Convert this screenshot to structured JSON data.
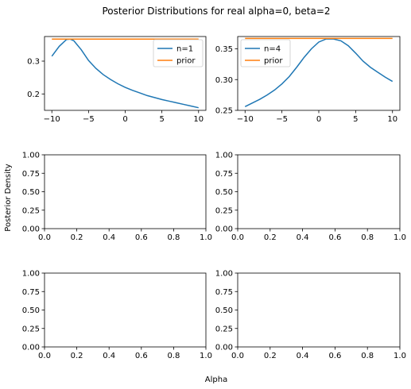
{
  "figure": {
    "title": "Posterior Distributions for real alpha=0, beta=2",
    "xlabel": "Alpha",
    "ylabel": "Posterior Density"
  },
  "colors": {
    "n_series": "#1f77b4",
    "prior": "#ff7f0e"
  },
  "chart_data": [
    {
      "type": "line",
      "xlim": [
        -11,
        11
      ],
      "ylim": [
        0.15,
        0.375
      ],
      "xticks": [
        -10,
        -5,
        0,
        5,
        10
      ],
      "yticks": [
        0.2,
        0.3
      ],
      "xtick_labels": [
        "−10",
        "−5",
        "0",
        "5",
        "10"
      ],
      "ytick_labels": [
        "0.2",
        "0.3"
      ],
      "legend": "top-right",
      "series": [
        {
          "name": "n=1",
          "color": "#1f77b4",
          "x": [
            -10,
            -9,
            -8,
            -7.5,
            -7,
            -6,
            -5,
            -4,
            -3,
            -2,
            -1,
            0,
            1,
            2,
            3,
            4,
            5,
            6,
            7,
            8,
            9,
            10
          ],
          "y": [
            0.315,
            0.345,
            0.366,
            0.367,
            0.362,
            0.335,
            0.302,
            0.278,
            0.259,
            0.244,
            0.231,
            0.22,
            0.211,
            0.203,
            0.195,
            0.189,
            0.183,
            0.178,
            0.173,
            0.168,
            0.163,
            0.158
          ]
        },
        {
          "name": "prior",
          "color": "#ff7f0e",
          "x": [
            -10,
            10
          ],
          "y": [
            0.367,
            0.367
          ]
        }
      ]
    },
    {
      "type": "line",
      "xlim": [
        -11,
        11
      ],
      "ylim": [
        0.25,
        0.37
      ],
      "xticks": [
        -10,
        -5,
        0,
        5,
        10
      ],
      "yticks": [
        0.25,
        0.3,
        0.35
      ],
      "xtick_labels": [
        "−10",
        "−5",
        "0",
        "5",
        "10"
      ],
      "ytick_labels": [
        "0.25",
        "0.30",
        "0.35"
      ],
      "legend": "top-left",
      "series": [
        {
          "name": "n=4",
          "color": "#1f77b4",
          "x": [
            -10,
            -9,
            -8,
            -7,
            -6,
            -5,
            -4,
            -3,
            -2,
            -1,
            0,
            1,
            2,
            3,
            4,
            5,
            6,
            7,
            8,
            9,
            10
          ],
          "y": [
            0.256,
            0.262,
            0.268,
            0.275,
            0.283,
            0.293,
            0.305,
            0.32,
            0.336,
            0.35,
            0.361,
            0.366,
            0.366,
            0.363,
            0.355,
            0.343,
            0.33,
            0.32,
            0.312,
            0.304,
            0.297
          ]
        },
        {
          "name": "prior",
          "color": "#ff7f0e",
          "x": [
            -10,
            10
          ],
          "y": [
            0.367,
            0.367
          ]
        }
      ]
    },
    {
      "type": "line",
      "xlim": [
        0,
        1
      ],
      "ylim": [
        0,
        1
      ],
      "xticks": [
        0,
        0.2,
        0.4,
        0.6,
        0.8,
        1.0
      ],
      "yticks": [
        0,
        0.25,
        0.5,
        0.75,
        1.0
      ],
      "xtick_labels": [
        "0.0",
        "0.2",
        "0.4",
        "0.6",
        "0.8",
        "1.0"
      ],
      "ytick_labels": [
        "0.00",
        "0.25",
        "0.50",
        "0.75",
        "1.00"
      ],
      "series": []
    },
    {
      "type": "line",
      "xlim": [
        0,
        1
      ],
      "ylim": [
        0,
        1
      ],
      "xticks": [
        0,
        0.2,
        0.4,
        0.6,
        0.8,
        1.0
      ],
      "yticks": [
        0,
        0.25,
        0.5,
        0.75,
        1.0
      ],
      "xtick_labels": [
        "0.0",
        "0.2",
        "0.4",
        "0.6",
        "0.8",
        "1.0"
      ],
      "ytick_labels": [
        "0.00",
        "0.25",
        "0.50",
        "0.75",
        "1.00"
      ],
      "series": []
    },
    {
      "type": "line",
      "xlim": [
        0,
        1
      ],
      "ylim": [
        0,
        1
      ],
      "xticks": [
        0,
        0.2,
        0.4,
        0.6,
        0.8,
        1.0
      ],
      "yticks": [
        0,
        0.25,
        0.5,
        0.75,
        1.0
      ],
      "xtick_labels": [
        "0.0",
        "0.2",
        "0.4",
        "0.6",
        "0.8",
        "1.0"
      ],
      "ytick_labels": [
        "0.00",
        "0.25",
        "0.50",
        "0.75",
        "1.00"
      ],
      "series": []
    },
    {
      "type": "line",
      "xlim": [
        0,
        1
      ],
      "ylim": [
        0,
        1
      ],
      "xticks": [
        0,
        0.2,
        0.4,
        0.6,
        0.8,
        1.0
      ],
      "yticks": [
        0,
        0.25,
        0.5,
        0.75,
        1.0
      ],
      "xtick_labels": [
        "0.0",
        "0.2",
        "0.4",
        "0.6",
        "0.8",
        "1.0"
      ],
      "ytick_labels": [
        "0.00",
        "0.25",
        "0.50",
        "0.75",
        "1.00"
      ],
      "series": []
    }
  ]
}
